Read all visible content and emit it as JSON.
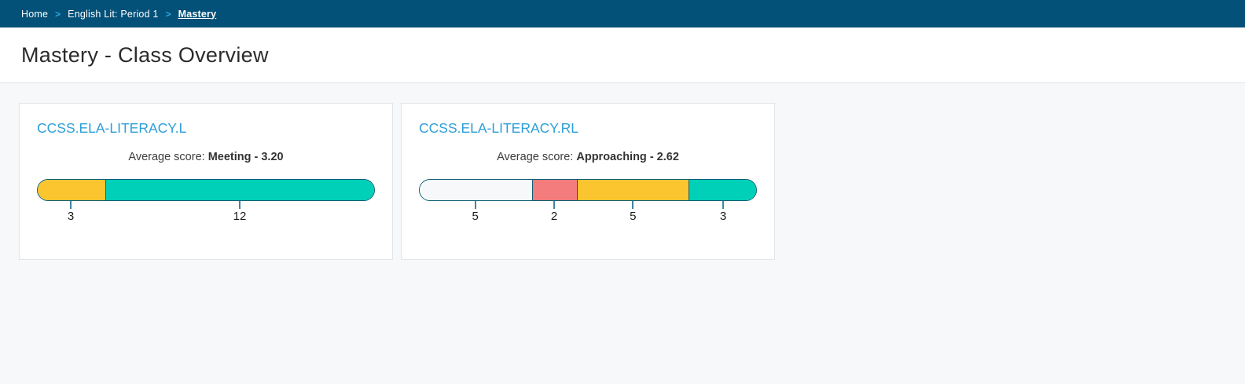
{
  "breadcrumb": {
    "separator": ">",
    "items": [
      {
        "label": "Home",
        "current": false
      },
      {
        "label": "English Lit: Period 1",
        "current": false
      },
      {
        "label": "Mastery",
        "current": true
      }
    ]
  },
  "header": {
    "title": "Mastery - Class Overview"
  },
  "colors": {
    "breadcrumb_bg": "#035078",
    "breadcrumb_separator": "#2fa8dc",
    "link_blue": "#2d9fd8",
    "bar_border": "#0d5f77",
    "tick_mark": "#3c87a2",
    "segment_white": "#f7f8fa",
    "segment_red": "#f47c7c",
    "segment_yellow": "#fbc530",
    "segment_teal": "#00d0b8",
    "page_background": "#f7f8fa"
  },
  "chart_data": [
    {
      "type": "bar",
      "title": "CCSS.ELA-LITERACY.L",
      "average": {
        "label": "Average score:",
        "value": "Meeting - 3.20"
      },
      "total": 15,
      "segments": [
        {
          "label": "3",
          "value": 3,
          "color": "#fbc530"
        },
        {
          "label": "12",
          "value": 12,
          "color": "#00d0b8"
        }
      ]
    },
    {
      "type": "bar",
      "title": "CCSS.ELA-LITERACY.RL",
      "average": {
        "label": "Average score:",
        "value": "Approaching - 2.62"
      },
      "total": 15,
      "segments": [
        {
          "label": "5",
          "value": 5,
          "color": "#f7f8fa"
        },
        {
          "label": "2",
          "value": 2,
          "color": "#f47c7c"
        },
        {
          "label": "5",
          "value": 5,
          "color": "#fbc530"
        },
        {
          "label": "3",
          "value": 3,
          "color": "#00d0b8"
        }
      ]
    }
  ]
}
